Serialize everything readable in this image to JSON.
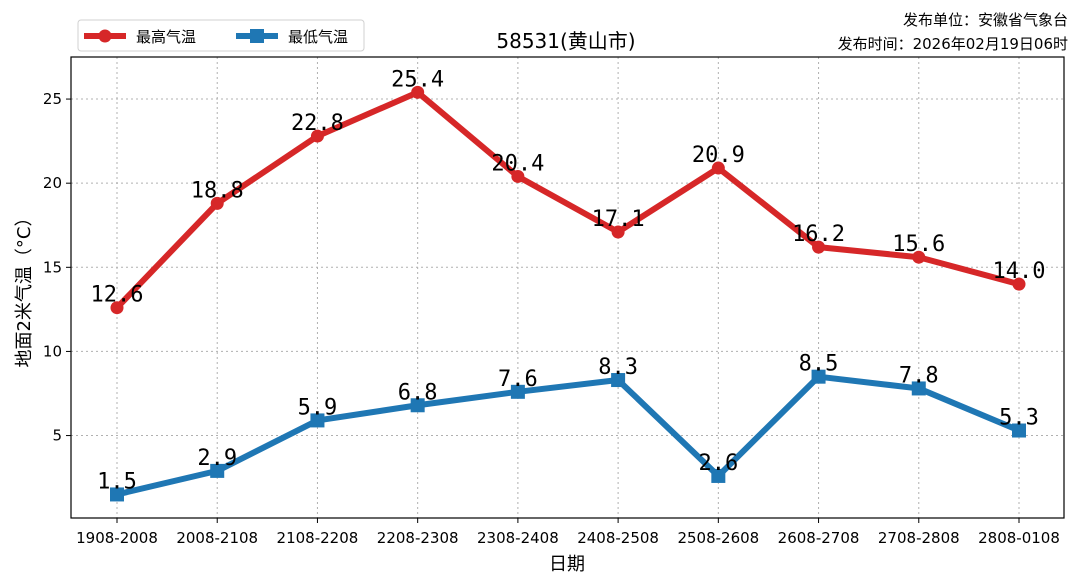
{
  "chart_data": {
    "type": "line",
    "title": "58531(黄山市)",
    "xlabel": "日期",
    "ylabel": "地面2米气温（°C）",
    "categories": [
      "1908-2008",
      "2008-2108",
      "2108-2208",
      "2208-2308",
      "2308-2408",
      "2408-2508",
      "2508-2608",
      "2608-2708",
      "2708-2808",
      "2808-0108"
    ],
    "ylim": [
      0.1,
      27.5
    ],
    "yticks": [
      5,
      10,
      15,
      20,
      25
    ],
    "grid": true,
    "legend_position": "top-left",
    "series": [
      {
        "name": "最高气温",
        "color": "#d62728",
        "marker": "circle",
        "values": [
          12.6,
          18.8,
          22.8,
          25.4,
          20.4,
          17.1,
          20.9,
          16.2,
          15.6,
          14.0
        ],
        "labels": [
          "12.6",
          "18.8",
          "22.8",
          "25.4",
          "20.4",
          "17.1",
          "20.9",
          "16.2",
          "15.6",
          "14.0"
        ]
      },
      {
        "name": "最低气温",
        "color": "#1f77b4",
        "marker": "square",
        "values": [
          1.5,
          2.9,
          5.9,
          6.8,
          7.6,
          8.3,
          2.6,
          8.5,
          7.8,
          5.3
        ],
        "labels": [
          "1.5",
          "2.9",
          "5.9",
          "6.8",
          "7.6",
          "8.3",
          "2.6",
          "8.5",
          "7.8",
          "5.3"
        ]
      }
    ]
  },
  "publisher": {
    "unit": "发布单位：安徽省气象台",
    "time": "发布时间：2026年02月19日06时"
  }
}
